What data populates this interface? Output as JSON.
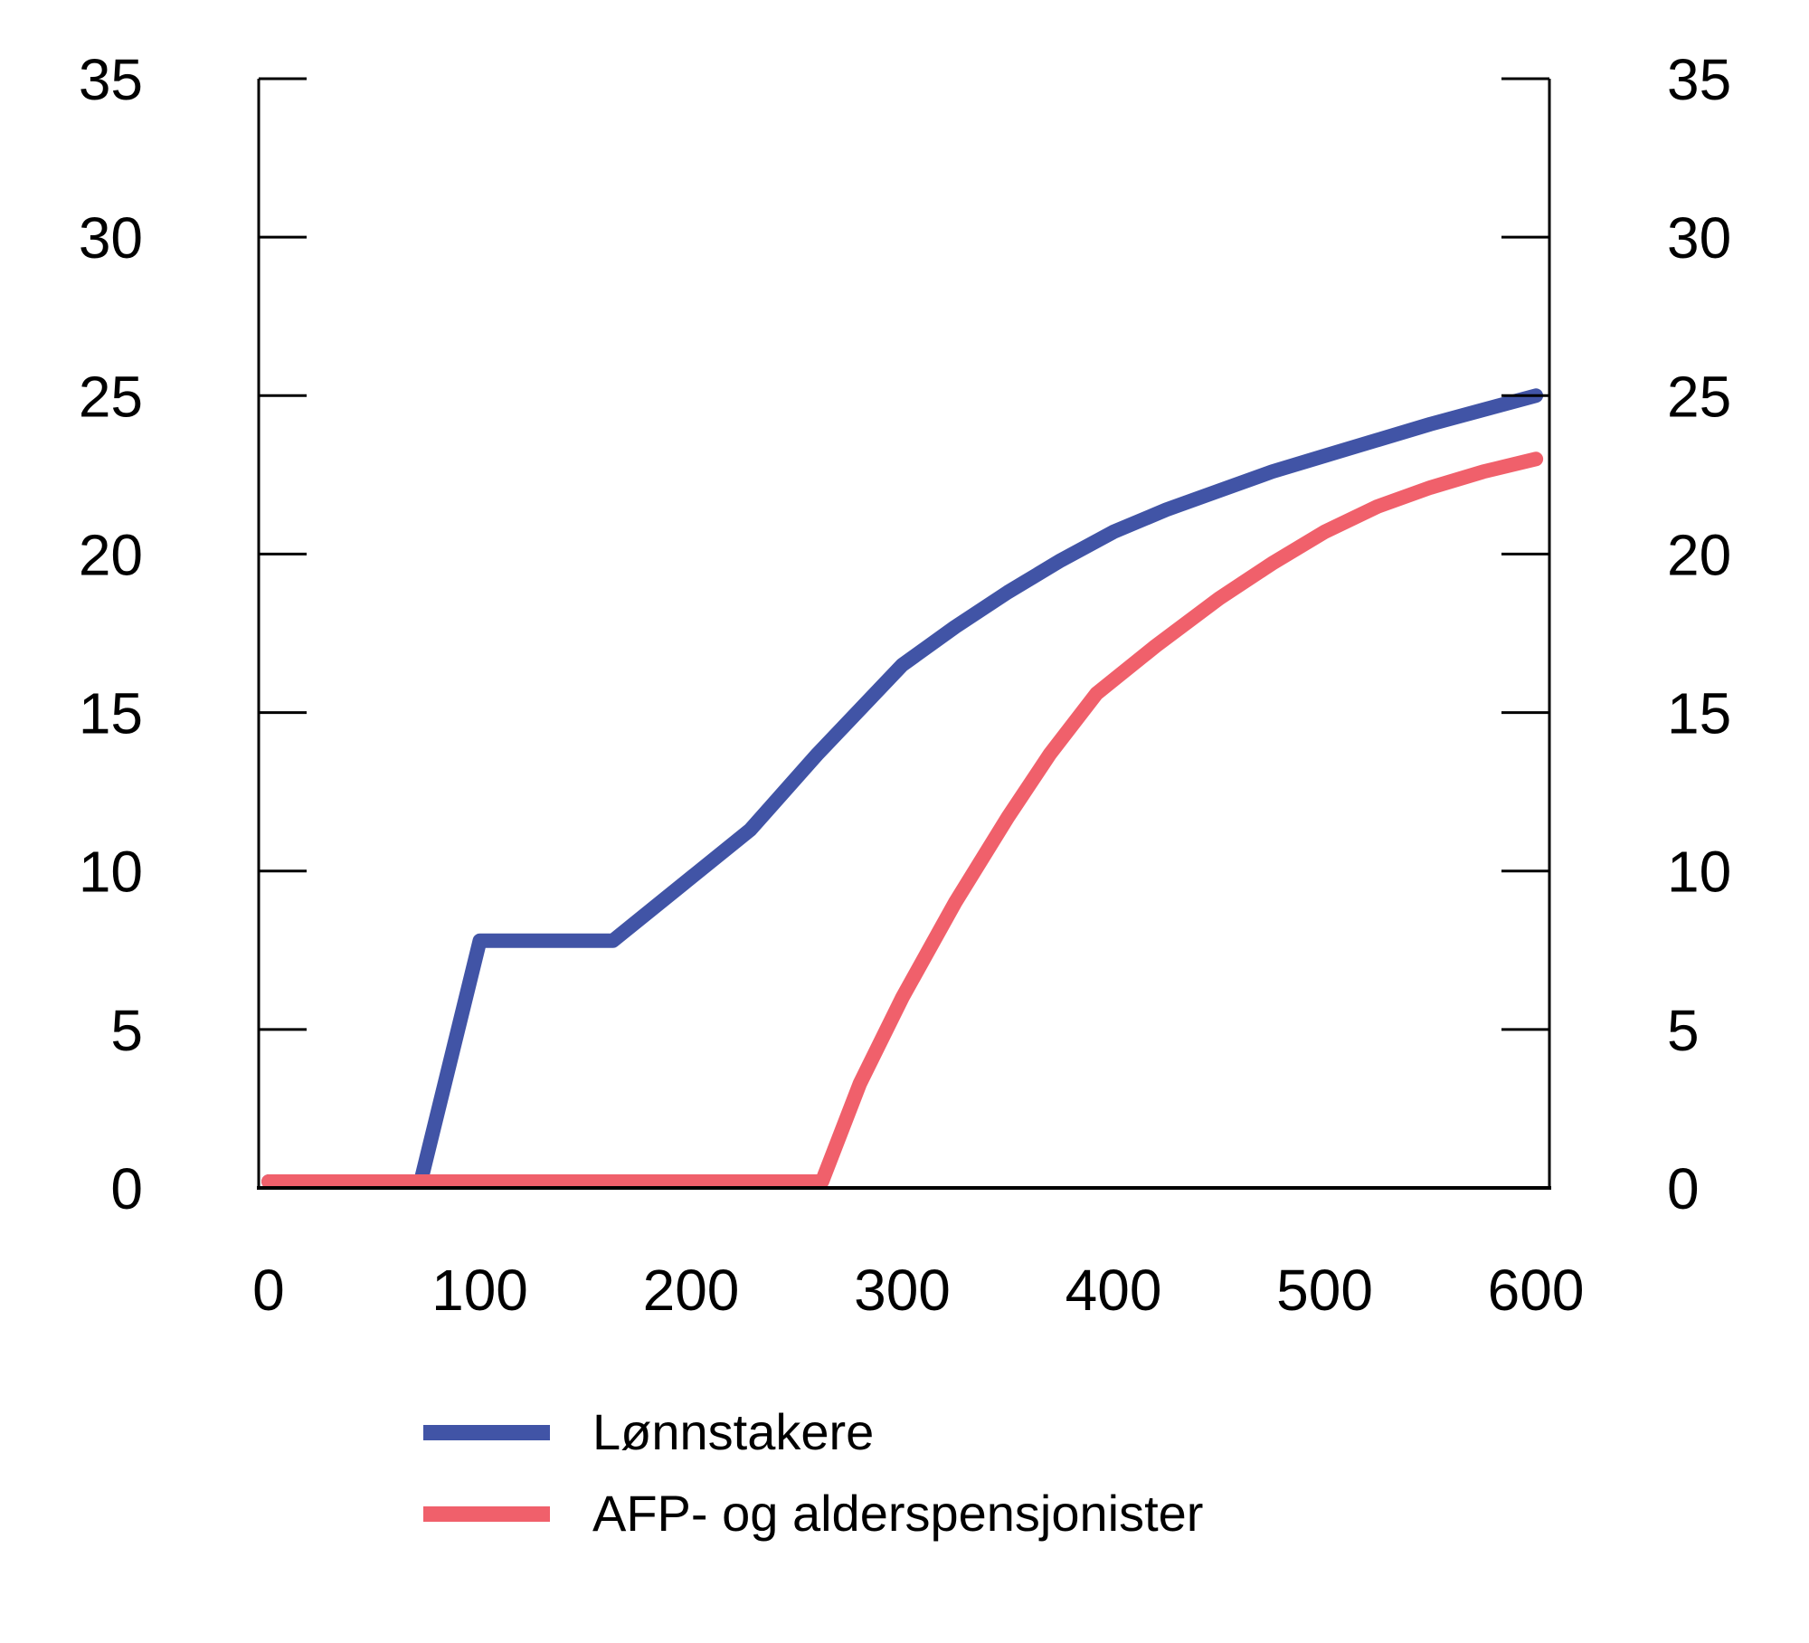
{
  "chart_data": {
    "type": "line",
    "title": "",
    "xlabel": "",
    "ylabel": "",
    "grid": false,
    "dual_y_axis": true,
    "legend_position": "bottom-left",
    "xlim": [
      -4.7,
      606.4
    ],
    "ylim": [
      0,
      35
    ],
    "x_ticks": [
      0,
      100,
      200,
      300,
      400,
      500,
      600
    ],
    "y_ticks": [
      0,
      5,
      10,
      15,
      20,
      25,
      30,
      35
    ],
    "axis_color": "#000000",
    "series": [
      {
        "name": "Lønnstakere",
        "color": "#4154a6",
        "points": [
          [
            0,
            0.2
          ],
          [
            72,
            0.2
          ],
          [
            100,
            7.8
          ],
          [
            163,
            7.8
          ],
          [
            228,
            11.3
          ],
          [
            260,
            13.7
          ],
          [
            300,
            16.5
          ],
          [
            325,
            17.7
          ],
          [
            350,
            18.8
          ],
          [
            375,
            19.8
          ],
          [
            400,
            20.7
          ],
          [
            425,
            21.4
          ],
          [
            450,
            22.0
          ],
          [
            475,
            22.6
          ],
          [
            500,
            23.1
          ],
          [
            525,
            23.6
          ],
          [
            550,
            24.1
          ],
          [
            575,
            24.55
          ],
          [
            600,
            25.0
          ]
        ]
      },
      {
        "name": "AFP- og alderspensjonister",
        "color": "#f0606b",
        "points": [
          [
            0,
            0.2
          ],
          [
            262,
            0.2
          ],
          [
            280,
            3.3
          ],
          [
            300,
            6.0
          ],
          [
            325,
            9.0
          ],
          [
            350,
            11.7
          ],
          [
            370,
            13.7
          ],
          [
            392,
            15.6
          ],
          [
            420,
            17.1
          ],
          [
            450,
            18.6
          ],
          [
            475,
            19.7
          ],
          [
            500,
            20.7
          ],
          [
            525,
            21.5
          ],
          [
            550,
            22.1
          ],
          [
            575,
            22.6
          ],
          [
            600,
            23.0
          ]
        ]
      }
    ]
  }
}
